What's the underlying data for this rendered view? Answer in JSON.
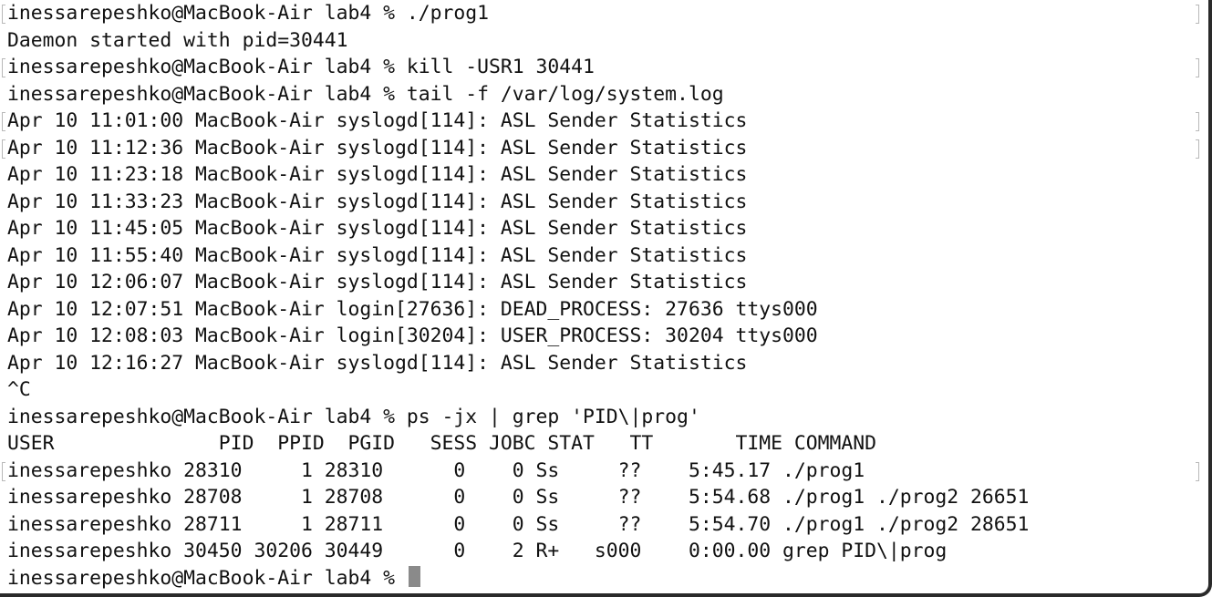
{
  "terminal": {
    "lines": [
      "inessarepeshko@MacBook-Air lab4 % ./prog1",
      "Daemon started with pid=30441",
      "inessarepeshko@MacBook-Air lab4 % kill -USR1 30441",
      "inessarepeshko@MacBook-Air lab4 % tail -f /var/log/system.log",
      "Apr 10 11:01:00 MacBook-Air syslogd[114]: ASL Sender Statistics",
      "Apr 10 11:12:36 MacBook-Air syslogd[114]: ASL Sender Statistics",
      "Apr 10 11:23:18 MacBook-Air syslogd[114]: ASL Sender Statistics",
      "Apr 10 11:33:23 MacBook-Air syslogd[114]: ASL Sender Statistics",
      "Apr 10 11:45:05 MacBook-Air syslogd[114]: ASL Sender Statistics",
      "Apr 10 11:55:40 MacBook-Air syslogd[114]: ASL Sender Statistics",
      "Apr 10 12:06:07 MacBook-Air syslogd[114]: ASL Sender Statistics",
      "Apr 10 12:07:51 MacBook-Air login[27636]: DEAD_PROCESS: 27636 ttys000",
      "Apr 10 12:08:03 MacBook-Air login[30204]: USER_PROCESS: 30204 ttys000",
      "Apr 10 12:16:27 MacBook-Air syslogd[114]: ASL Sender Statistics",
      "^C",
      "inessarepeshko@MacBook-Air lab4 % ps -jx | grep 'PID\\|prog'",
      "USER              PID  PPID  PGID   SESS JOBC STAT   TT       TIME COMMAND",
      "inessarepeshko 28310     1 28310      0    0 Ss     ??    5:45.17 ./prog1",
      "inessarepeshko 28708     1 28708      0    0 Ss     ??    5:54.68 ./prog1 ./prog2 26651",
      "inessarepeshko 28711     1 28711      0    0 Ss     ??    5:54.70 ./prog1 ./prog2 28651",
      "inessarepeshko 30450 30206 30449      0    2 R+   s000    0:00.00 grep PID\\|prog"
    ],
    "prompt": "inessarepeshko@MacBook-Air lab4 % "
  }
}
